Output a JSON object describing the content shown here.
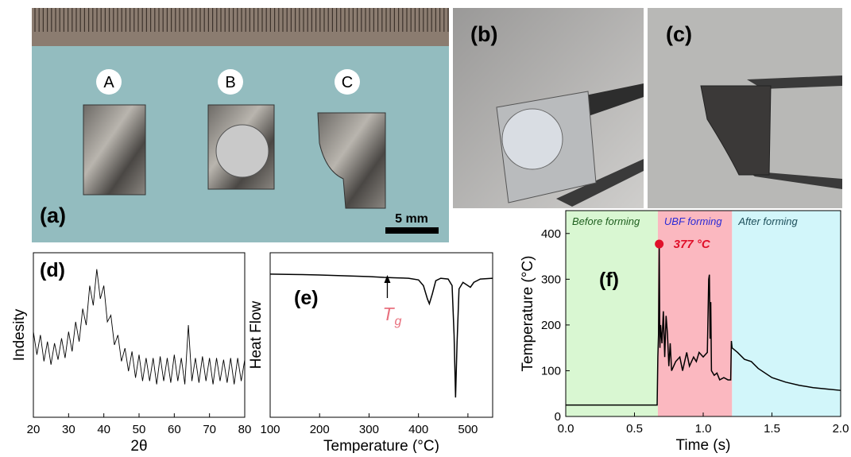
{
  "photos": {
    "a": {
      "label": "(a)",
      "samples": [
        "A",
        "B",
        "C"
      ],
      "scale_bar": "5 mm"
    },
    "b": {
      "label": "(b)"
    },
    "c": {
      "label": "(c)"
    }
  },
  "chart_data": [
    {
      "type": "line",
      "label": "(d)",
      "xlabel": "2θ",
      "ylabel": "Indesity",
      "xlim": [
        20,
        80
      ],
      "xticks": [
        20,
        30,
        40,
        50,
        60,
        70,
        80
      ],
      "ylim": [
        0,
        100
      ],
      "color": "#000000",
      "x": [
        20,
        21,
        22,
        23,
        24,
        25,
        26,
        27,
        28,
        29,
        30,
        31,
        32,
        33,
        34,
        35,
        36,
        37,
        38,
        39,
        40,
        41,
        42,
        43,
        44,
        45,
        46,
        47,
        48,
        49,
        50,
        51,
        52,
        53,
        54,
        55,
        56,
        57,
        58,
        59,
        60,
        61,
        62,
        63,
        64,
        65,
        66,
        67,
        68,
        69,
        70,
        71,
        72,
        73,
        74,
        75,
        76,
        77,
        78,
        79,
        80
      ],
      "values": [
        52,
        38,
        50,
        34,
        46,
        32,
        45,
        35,
        48,
        36,
        52,
        40,
        58,
        46,
        66,
        56,
        80,
        68,
        90,
        72,
        80,
        58,
        62,
        44,
        50,
        34,
        42,
        28,
        40,
        24,
        38,
        22,
        36,
        22,
        36,
        20,
        37,
        22,
        36,
        21,
        38,
        22,
        36,
        20,
        56,
        22,
        36,
        21,
        37,
        22,
        36,
        20,
        36,
        22,
        35,
        21,
        36,
        20,
        36,
        22,
        35
      ]
    },
    {
      "type": "line",
      "label": "(e)",
      "xlabel": "Temperature (°C)",
      "ylabel": "Heat Flow",
      "xlim": [
        100,
        550
      ],
      "xticks": [
        100,
        200,
        300,
        400,
        500
      ],
      "ylim": [
        0,
        100
      ],
      "color": "#000000",
      "x": [
        100,
        150,
        200,
        250,
        300,
        330,
        350,
        380,
        400,
        410,
        418,
        422,
        428,
        435,
        445,
        460,
        468,
        472,
        475,
        478,
        482,
        490,
        500,
        505,
        512,
        525,
        550
      ],
      "values": [
        87,
        86.8,
        86.5,
        86,
        85.5,
        85,
        84.8,
        84.5,
        83.5,
        80,
        72,
        69,
        75,
        83,
        84.5,
        84,
        80,
        50,
        12,
        45,
        78,
        82,
        80,
        79,
        82,
        84,
        84.5
      ],
      "annotation": {
        "x": 337,
        "text": "T",
        "subscript": "g"
      }
    },
    {
      "type": "line",
      "label": "(f)",
      "xlabel": "Time (s)",
      "ylabel": "Temperature (°C)",
      "xlim": [
        0,
        2
      ],
      "xticks": [
        {
          "value": 0,
          "label": "0.0"
        },
        {
          "value": 0.5,
          "label": "0.5"
        },
        {
          "value": 1,
          "label": "1.0"
        },
        {
          "value": 1.5,
          "label": "1.5"
        },
        {
          "value": 2,
          "label": "2.0"
        }
      ],
      "ylim": [
        0,
        450
      ],
      "yticks": [
        0,
        100,
        200,
        300,
        400
      ],
      "color": "#000000",
      "regions": [
        {
          "x0": 0,
          "x1": 0.67,
          "color": "#d9f7d2",
          "label": "Before forming",
          "label_color": "#1f5f1f"
        },
        {
          "x0": 0.67,
          "x1": 1.21,
          "color": "#fbb8c0",
          "label": "UBF forming",
          "label_color": "#2a2ad6"
        },
        {
          "x0": 1.21,
          "x1": 2,
          "color": "#d2f6fa",
          "label": "After forming",
          "label_color": "#1d4f5a"
        }
      ],
      "peak": {
        "x": 0.68,
        "y": 377,
        "label": "377 °C",
        "color": "#e0102a"
      },
      "x": [
        0,
        0.665,
        0.67,
        0.675,
        0.68,
        0.685,
        0.69,
        0.7,
        0.71,
        0.72,
        0.73,
        0.74,
        0.75,
        0.76,
        0.77,
        0.8,
        0.83,
        0.85,
        0.88,
        0.9,
        0.93,
        0.95,
        0.97,
        1.0,
        1.03,
        1.04,
        1.045,
        1.05,
        1.055,
        1.06,
        1.08,
        1.1,
        1.12,
        1.15,
        1.18,
        1.2,
        1.205,
        1.21,
        1.25,
        1.3,
        1.35,
        1.4,
        1.5,
        1.6,
        1.7,
        1.8,
        1.9,
        2.0
      ],
      "values": [
        25,
        25,
        130,
        180,
        377,
        150,
        200,
        160,
        230,
        130,
        220,
        180,
        110,
        160,
        100,
        120,
        130,
        100,
        140,
        110,
        130,
        120,
        140,
        130,
        140,
        300,
        310,
        170,
        250,
        100,
        90,
        95,
        80,
        85,
        80,
        80,
        165,
        150,
        140,
        125,
        120,
        105,
        85,
        75,
        68,
        63,
        60,
        57
      ]
    }
  ]
}
